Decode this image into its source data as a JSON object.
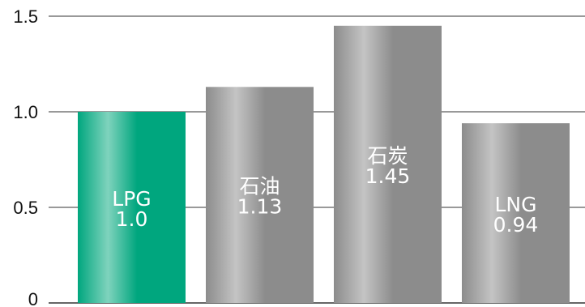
{
  "chart_data": {
    "type": "bar",
    "title": "",
    "xlabel": "",
    "ylabel": "",
    "ylim": [
      0,
      1.5
    ],
    "yticks": [
      {
        "value": 0,
        "label": "0"
      },
      {
        "value": 0.5,
        "label": "0.5"
      },
      {
        "value": 1.0,
        "label": "1.0"
      },
      {
        "value": 1.5,
        "label": "1.5"
      }
    ],
    "grid": true,
    "legend": "none",
    "categories": [
      "LPG",
      "石油",
      "石炭",
      "LNG"
    ],
    "values": [
      1.0,
      1.13,
      1.45,
      0.94
    ],
    "value_labels": [
      "1.0",
      "1.13",
      "1.45",
      "0.94"
    ],
    "colors": {
      "highlight": "#00a67e",
      "highlight_light": "#7fd3bd",
      "default": "#8c8c8c",
      "default_light": "#c4c4c4",
      "grid": "#333333"
    },
    "highlight_index": 0
  }
}
